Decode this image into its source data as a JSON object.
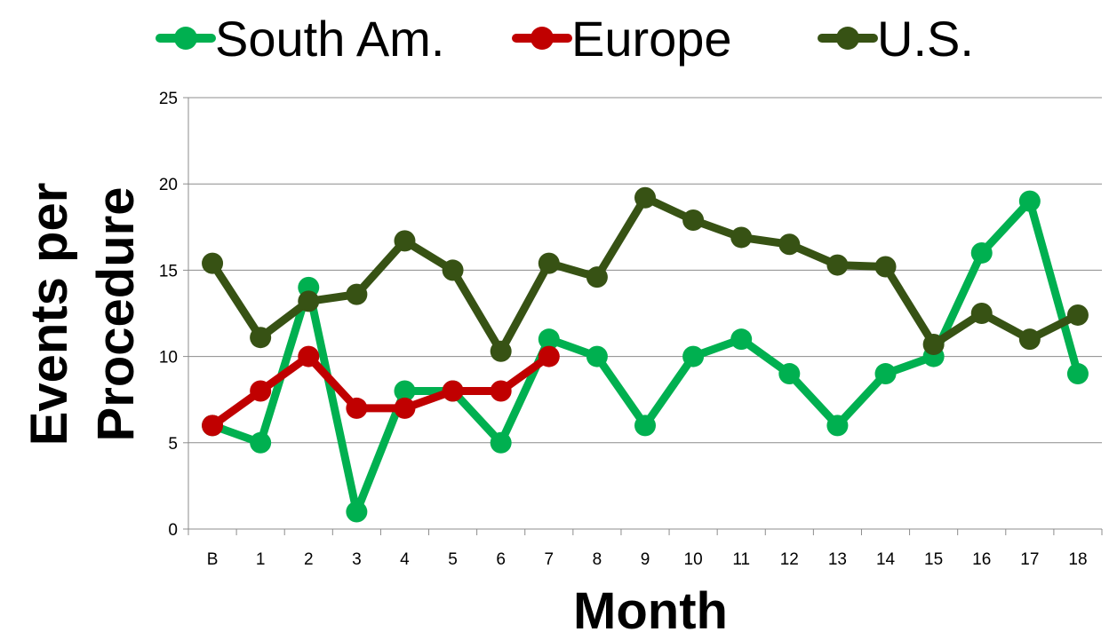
{
  "chart_data": {
    "type": "line",
    "title": "",
    "xlabel": "Month",
    "ylabel": "Events per Procedure",
    "categories": [
      "B",
      "1",
      "2",
      "3",
      "4",
      "5",
      "6",
      "7",
      "8",
      "9",
      "10",
      "11",
      "12",
      "13",
      "14",
      "15",
      "16",
      "17",
      "18"
    ],
    "ylim": [
      0,
      25
    ],
    "yticks": [
      0,
      5,
      10,
      15,
      20,
      25
    ],
    "grid": "horizontal",
    "legend_position": "top",
    "series": [
      {
        "name": "South Am.",
        "color": "#00b050",
        "values": [
          6,
          5,
          14,
          1,
          8,
          8,
          5,
          11,
          10,
          6,
          10,
          11,
          9,
          6,
          9,
          10,
          16,
          19,
          9
        ]
      },
      {
        "name": "Europe",
        "color": "#c00000",
        "values": [
          6,
          8,
          10,
          7,
          7,
          8,
          8,
          10,
          null,
          null,
          null,
          null,
          null,
          null,
          null,
          null,
          null,
          null,
          null
        ]
      },
      {
        "name": "U.S.",
        "color": "#375214",
        "values": [
          15.4,
          11.1,
          13.2,
          13.6,
          16.7,
          15,
          10.3,
          15.4,
          14.6,
          19.2,
          17.9,
          16.9,
          16.5,
          15.3,
          15.2,
          10.7,
          12.5,
          11,
          12.4
        ]
      }
    ]
  }
}
